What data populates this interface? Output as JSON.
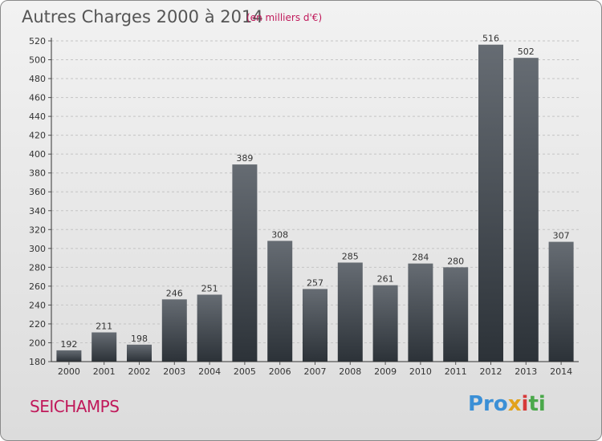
{
  "title": "Autres Charges 2000 à 2014",
  "subtitle": "(en milliers d'€)",
  "commune": "SEICHAMPS",
  "logo": {
    "p1": "Pro",
    "p2": "x",
    "p3": "i",
    "p4": "ti"
  },
  "colors": {
    "bar_top": "#666c73",
    "bar_bottom": "#2c3238",
    "accent": "#c0185a"
  },
  "chart_data": {
    "type": "bar",
    "categories": [
      "2000",
      "2001",
      "2002",
      "2003",
      "2004",
      "2005",
      "2006",
      "2007",
      "2008",
      "2009",
      "2010",
      "2011",
      "2012",
      "2013",
      "2014"
    ],
    "values": [
      192,
      211,
      198,
      246,
      251,
      389,
      308,
      257,
      285,
      261,
      284,
      280,
      516,
      502,
      307
    ],
    "ylim": [
      180,
      520
    ],
    "yticks": [
      180,
      200,
      220,
      240,
      260,
      280,
      300,
      320,
      340,
      360,
      380,
      400,
      420,
      440,
      460,
      480,
      500,
      520
    ],
    "grid": true
  }
}
